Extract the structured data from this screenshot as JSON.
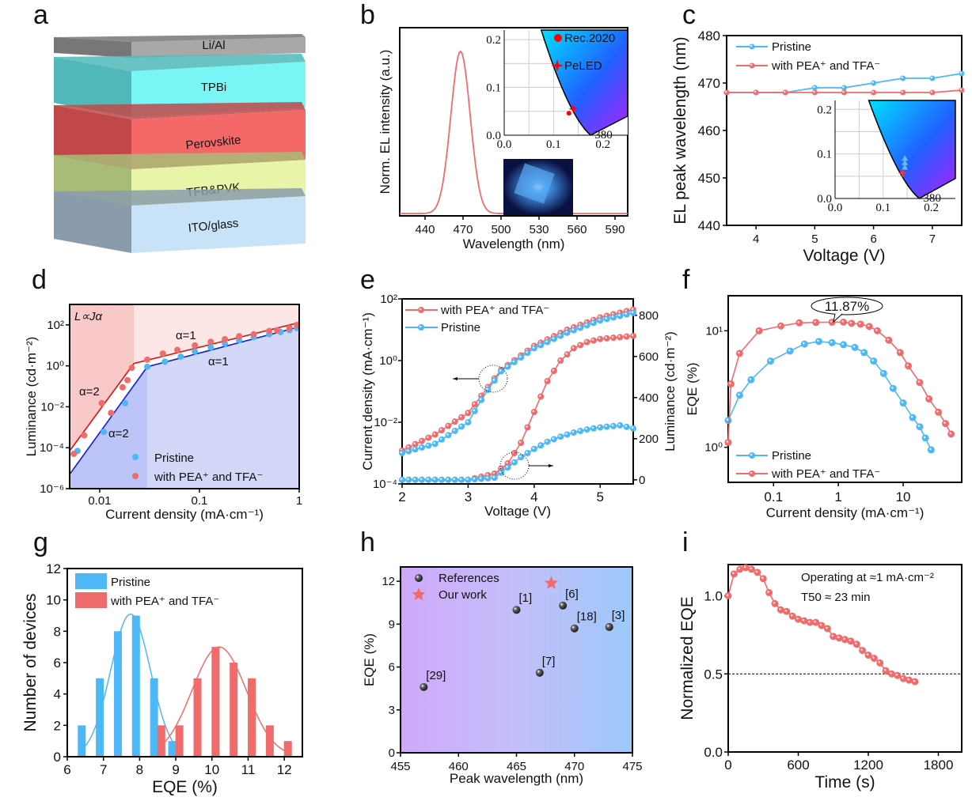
{
  "figure": {
    "panel_labels": [
      "a",
      "b",
      "c",
      "d",
      "e",
      "f",
      "g",
      "h",
      "i"
    ],
    "colors": {
      "pristine": "#4db8f5",
      "treated": "#f06b6b",
      "red_line": "#e01010",
      "blue_line": "#1020d0"
    }
  },
  "chart_data": [
    {
      "panel": "a",
      "type": "diagram",
      "title": "Device stack",
      "layers": [
        {
          "label": "Li/Al",
          "color": "#a8a8a8"
        },
        {
          "label": "TPBi",
          "color": "#7af5f5"
        },
        {
          "label": "Perovskite",
          "color": "#f56868"
        },
        {
          "label": "TFB&PVK",
          "color": "#e8f5a8"
        },
        {
          "label": "ITO/glass",
          "color": "#c8e2f8"
        }
      ]
    },
    {
      "panel": "b",
      "type": "line",
      "xlabel": "Wavelength (nm)",
      "ylabel": "Norm. EL intensity (a.u.)",
      "xlim": [
        420,
        600
      ],
      "xticks": [
        440,
        470,
        500,
        530,
        560,
        590
      ],
      "series": [
        {
          "name": "EL spectrum",
          "peak_nm": 468,
          "fwhm_nm": 18
        }
      ],
      "inset": {
        "type": "cie",
        "xticks": [
          "0.0",
          "0.1",
          "0.2"
        ],
        "yticks": [
          "0.0",
          "0.1",
          "0.2"
        ],
        "legend": [
          "Rec.2020",
          "PeLED"
        ],
        "points": [
          {
            "name": "Rec.2020",
            "x": 0.131,
            "y": 0.046
          },
          {
            "name": "PeLED",
            "x": 0.14,
            "y": 0.055
          }
        ],
        "locus_label": "380"
      }
    },
    {
      "panel": "c",
      "type": "line",
      "xlabel": "Voltage (V)",
      "ylabel": "EL peak wavelength (nm)",
      "xlim": [
        3.5,
        7.5
      ],
      "ylim": [
        440,
        480
      ],
      "xticks": [
        4,
        5,
        6,
        7
      ],
      "yticks": [
        440,
        450,
        460,
        470,
        480
      ],
      "x": [
        3.5,
        4.0,
        4.5,
        5.0,
        5.5,
        6.0,
        6.5,
        7.0,
        7.5
      ],
      "series": [
        {
          "name": "Pristine",
          "values": [
            468,
            468,
            468,
            469,
            469,
            470,
            471,
            471,
            472
          ]
        },
        {
          "name": "with PEA⁺ and TFA⁻",
          "values": [
            468,
            468,
            468,
            468,
            468,
            468,
            468,
            468,
            468.5
          ]
        }
      ],
      "inset": {
        "type": "cie",
        "xticks": [
          "0.0",
          "0.1",
          "0.2"
        ],
        "yticks": [
          "0.0",
          "0.1",
          "0.2"
        ],
        "locus_label": "380"
      }
    },
    {
      "panel": "d",
      "type": "scatter",
      "xlabel": "Current density (mA·cm⁻¹)",
      "ylabel": "Luminance (cd·m⁻²)",
      "xscale": "log",
      "yscale": "log",
      "xlim": [
        0.005,
        1
      ],
      "ylim": [
        1e-06,
        1000
      ],
      "xticks": [
        "0.01",
        "0.1",
        "1"
      ],
      "yticks": [
        "10⁻⁶",
        "10⁻⁴",
        "10⁻²",
        "10⁰",
        "10²"
      ],
      "annotations": [
        "L∝Jα",
        "α=1",
        "α=1",
        "α=2",
        "α=2"
      ],
      "series": [
        {
          "name": "Pristine",
          "x": [
            0.006,
            0.011,
            0.018,
            0.03,
            0.045,
            0.065,
            0.09,
            0.13,
            0.18,
            0.25,
            0.35,
            0.5,
            0.65,
            0.8,
            0.95
          ],
          "values": [
            7e-05,
            0.0006,
            0.015,
            0.9,
            1.6,
            2.8,
            5,
            8,
            12,
            18,
            25,
            35,
            45,
            55,
            70
          ]
        },
        {
          "name": "with PEA⁺ and TFA⁻",
          "x": [
            0.0055,
            0.007,
            0.0105,
            0.013,
            0.017,
            0.019,
            0.021,
            0.03,
            0.043,
            0.06,
            0.09,
            0.13,
            0.18,
            0.25,
            0.35,
            0.5,
            0.6,
            0.8,
            0.95
          ],
          "values": [
            5e-05,
            0.0004,
            0.015,
            0.005,
            0.09,
            0.2,
            0.8,
            2,
            4,
            6,
            10,
            15,
            20,
            28,
            35,
            50,
            55,
            70,
            100
          ]
        }
      ]
    },
    {
      "panel": "e",
      "type": "line",
      "xlabel": "Voltage (V)",
      "ylabel": "Current density (mA·cm⁻¹)",
      "ylabel_right": "Luminance (cd·m⁻²)",
      "xlim": [
        2,
        5.5
      ],
      "ylim": [
        0.0001,
        100
      ],
      "ylim_right": [
        -20,
        880
      ],
      "xticks": [
        2,
        3,
        4,
        5
      ],
      "yticks": [
        "10⁻⁴",
        "10⁻²",
        "10⁰",
        "10²"
      ],
      "yticks_right": [
        0,
        200,
        400,
        600,
        800
      ],
      "series": [
        {
          "name": "with PEA⁺ and TFA⁻ (J)",
          "axis": "left",
          "x": [
            2.0,
            2.5,
            3.0,
            3.25,
            3.5,
            4.0,
            4.5,
            5.0,
            5.5
          ],
          "values": [
            0.0012,
            0.004,
            0.02,
            0.1,
            0.5,
            3,
            10,
            25,
            45
          ]
        },
        {
          "name": "Pristine (J)",
          "axis": "left",
          "x": [
            2.0,
            2.5,
            3.0,
            3.25,
            3.5,
            4.0,
            4.5,
            5.0,
            5.5
          ],
          "values": [
            0.001,
            0.002,
            0.01,
            0.08,
            0.45,
            2.5,
            8,
            20,
            35
          ]
        },
        {
          "name": "with PEA⁺ and TFA⁻ (L)",
          "axis": "right",
          "x": [
            2.0,
            3.0,
            3.4,
            3.6,
            3.8,
            4.0,
            4.2,
            4.4,
            4.6,
            4.8,
            5.0,
            5.5
          ],
          "values": [
            0,
            0,
            30,
            80,
            180,
            330,
            480,
            580,
            640,
            670,
            685,
            700
          ]
        },
        {
          "name": "Pristine (L)",
          "axis": "right",
          "x": [
            2.0,
            3.0,
            3.4,
            3.6,
            3.8,
            4.0,
            4.2,
            4.4,
            4.6,
            4.8,
            5.0,
            5.3,
            5.5
          ],
          "values": [
            0,
            0,
            10,
            60,
            110,
            150,
            185,
            210,
            230,
            245,
            255,
            265,
            250
          ]
        }
      ],
      "legend": [
        "with PEA⁺ and TFA⁻",
        "Pristine"
      ]
    },
    {
      "panel": "f",
      "type": "line",
      "xlabel": "Current density (mA·cm⁻¹)",
      "ylabel": "EQE (%)",
      "xscale": "log",
      "yscale": "log",
      "xlim": [
        0.02,
        80
      ],
      "ylim": [
        0.5,
        20
      ],
      "xticks": [
        "0.1",
        "1",
        "10"
      ],
      "yticks": [
        "10⁰",
        "10¹"
      ],
      "annotation": "11.87%",
      "series": [
        {
          "name": "Pristine",
          "x": [
            0.02,
            0.03,
            0.045,
            0.09,
            0.18,
            0.3,
            0.5,
            0.8,
            1.2,
            1.8,
            2.5,
            3.5,
            5,
            7,
            10,
            14,
            18,
            22,
            27
          ],
          "values": [
            1.7,
            2.8,
            3.8,
            5.5,
            6.7,
            7.7,
            8.1,
            7.9,
            7.6,
            7.2,
            6.5,
            5.5,
            4.3,
            3.2,
            2.4,
            1.8,
            1.5,
            1.2,
            0.95
          ]
        },
        {
          "name": "with PEA⁺ and TFA⁻",
          "x": [
            0.02,
            0.022,
            0.03,
            0.06,
            0.13,
            0.25,
            0.45,
            0.8,
            1.2,
            1.6,
            2.2,
            3,
            4,
            6,
            9,
            12,
            18,
            25,
            35,
            45,
            55
          ],
          "values": [
            1.1,
            3.5,
            6.4,
            10,
            11,
            11.7,
            11.8,
            11.85,
            11.87,
            11.6,
            11.4,
            10.9,
            10,
            8.3,
            6.5,
            5,
            3.6,
            2.6,
            2,
            1.6,
            1.3
          ]
        }
      ]
    },
    {
      "panel": "g",
      "type": "bar",
      "xlabel": "EQE (%)",
      "ylabel": "Number of devices",
      "xlim": [
        6,
        12.5
      ],
      "ylim": [
        0,
        12
      ],
      "xticks": [
        6,
        7,
        8,
        9,
        10,
        11,
        12
      ],
      "yticks": [
        0,
        2,
        4,
        6,
        8,
        10,
        12
      ],
      "series": [
        {
          "name": "Pristine",
          "x": [
            6.4,
            6.9,
            7.4,
            7.9,
            8.4,
            8.9
          ],
          "values": [
            2,
            5,
            8,
            9,
            5,
            1
          ],
          "fit_center": 7.75,
          "fit_peak": 9.1
        },
        {
          "name": "with PEA⁺ and TFA⁻",
          "x": [
            8.6,
            9.1,
            9.6,
            10.1,
            10.6,
            11.1,
            11.6,
            12.1
          ],
          "values": [
            2,
            2,
            5,
            7,
            6,
            5,
            2,
            1
          ],
          "fit_center": 10.2,
          "fit_peak": 7
        }
      ]
    },
    {
      "panel": "h",
      "type": "scatter",
      "xlabel": "Peak wavelength (nm)",
      "ylabel": "EQE (%)",
      "xlim": [
        455,
        475
      ],
      "ylim": [
        0,
        13
      ],
      "xticks": [
        455,
        460,
        465,
        470,
        475
      ],
      "yticks": [
        0,
        3,
        6,
        9,
        12
      ],
      "series": [
        {
          "name": "References",
          "points": [
            {
              "x": 457,
              "y": 4.6,
              "label": "[29]"
            },
            {
              "x": 465,
              "y": 10.0,
              "label": "[1]"
            },
            {
              "x": 467,
              "y": 5.6,
              "label": "[7]"
            },
            {
              "x": 469,
              "y": 10.3,
              "label": "[6]"
            },
            {
              "x": 470,
              "y": 8.7,
              "label": "[18]"
            },
            {
              "x": 473,
              "y": 8.8,
              "label": "[3]"
            }
          ]
        },
        {
          "name": "Our work",
          "points": [
            {
              "x": 468,
              "y": 11.87,
              "label": ""
            }
          ]
        }
      ]
    },
    {
      "panel": "i",
      "type": "line",
      "xlabel": "Time (s)",
      "ylabel": "Normalized EQE",
      "xlim": [
        0,
        2000
      ],
      "ylim": [
        0,
        1.2
      ],
      "xticks": [
        0,
        600,
        1200,
        1800
      ],
      "yticks": [
        "0.0",
        "0.5",
        "1.0"
      ],
      "reference_line": 0.5,
      "annotations": [
        "Operating at ≈1 mA·cm⁻²",
        "T50 ≈ 23 min"
      ],
      "series": [
        {
          "name": "with PEA⁺ and TFA⁻",
          "x": [
            0,
            50,
            100,
            150,
            200,
            250,
            300,
            350,
            400,
            450,
            500,
            550,
            600,
            650,
            700,
            750,
            800,
            850,
            900,
            950,
            1000,
            1050,
            1100,
            1150,
            1200,
            1250,
            1300,
            1350,
            1400,
            1450,
            1500,
            1550,
            1600
          ],
          "values": [
            1.0,
            1.14,
            1.17,
            1.18,
            1.17,
            1.15,
            1.11,
            1.02,
            0.95,
            0.91,
            0.9,
            0.87,
            0.85,
            0.84,
            0.83,
            0.83,
            0.81,
            0.79,
            0.74,
            0.73,
            0.72,
            0.71,
            0.69,
            0.65,
            0.62,
            0.6,
            0.57,
            0.52,
            0.5,
            0.49,
            0.47,
            0.46,
            0.45
          ]
        }
      ]
    }
  ]
}
